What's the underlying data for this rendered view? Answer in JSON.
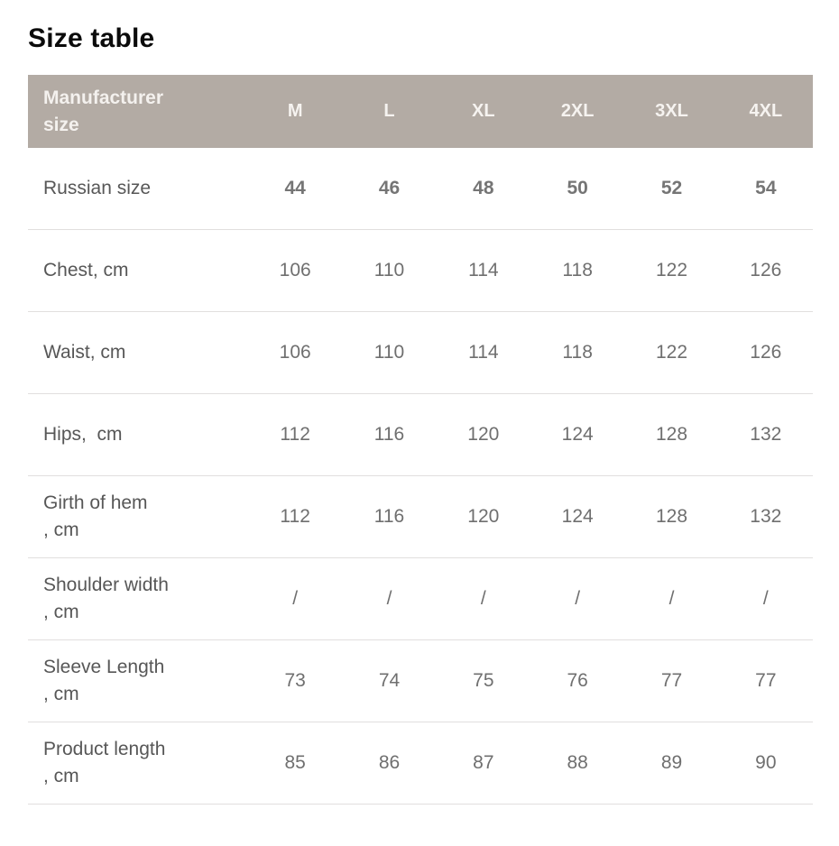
{
  "page": {
    "title": "Size table"
  },
  "colors": {
    "header_bg": "#b3aba4",
    "header_text": "#f4f1ee",
    "label_text": "#575757",
    "value_text": "#6f6f6f",
    "divider": "#e1dfde",
    "title_text": "#0b0b0b",
    "background": "#ffffff"
  },
  "table": {
    "header": {
      "label": "Manufacturer\nsize",
      "columns": [
        "M",
        "L",
        "XL",
        "2XL",
        "3XL",
        "4XL"
      ]
    },
    "rows": [
      {
        "label": "Russian size",
        "values": [
          "44",
          "46",
          "48",
          "50",
          "52",
          "54"
        ]
      },
      {
        "label": "Chest, cm",
        "values": [
          "106",
          "110",
          "114",
          "118",
          "122",
          "126"
        ]
      },
      {
        "label": "Waist, cm",
        "values": [
          "106",
          "110",
          "114",
          "118",
          "122",
          "126"
        ]
      },
      {
        "label": "Hips,  cm",
        "values": [
          "112",
          "116",
          "120",
          "124",
          "128",
          "132"
        ]
      },
      {
        "label": "Girth of hem\n, cm",
        "values": [
          "112",
          "116",
          "120",
          "124",
          "128",
          "132"
        ]
      },
      {
        "label": "Shoulder width\n, cm",
        "values": [
          "/",
          "/",
          "/",
          "/",
          "/",
          "/"
        ]
      },
      {
        "label": "Sleeve Length\n, cm",
        "values": [
          "73",
          "74",
          "75",
          "76",
          "77",
          "77"
        ]
      },
      {
        "label": "Product length\n, cm",
        "values": [
          "85",
          "86",
          "87",
          "88",
          "89",
          "90"
        ]
      }
    ]
  },
  "chart_data": {
    "type": "table",
    "title": "Size table",
    "columns": [
      "Manufacturer size",
      "M",
      "L",
      "XL",
      "2XL",
      "3XL",
      "4XL"
    ],
    "rows": [
      [
        "Russian size",
        "44",
        "46",
        "48",
        "50",
        "52",
        "54"
      ],
      [
        "Chest, cm",
        "106",
        "110",
        "114",
        "118",
        "122",
        "126"
      ],
      [
        "Waist, cm",
        "106",
        "110",
        "114",
        "118",
        "122",
        "126"
      ],
      [
        "Hips, cm",
        "112",
        "116",
        "120",
        "124",
        "128",
        "132"
      ],
      [
        "Girth of hem, cm",
        "112",
        "116",
        "120",
        "124",
        "128",
        "132"
      ],
      [
        "Shoulder width, cm",
        "/",
        "/",
        "/",
        "/",
        "/",
        "/"
      ],
      [
        "Sleeve Length, cm",
        "73",
        "74",
        "75",
        "76",
        "77",
        "77"
      ],
      [
        "Product length, cm",
        "85",
        "86",
        "87",
        "88",
        "89",
        "90"
      ]
    ],
    "layout": {
      "header_filled": true,
      "row_dividers": true,
      "values_centered": true
    }
  }
}
